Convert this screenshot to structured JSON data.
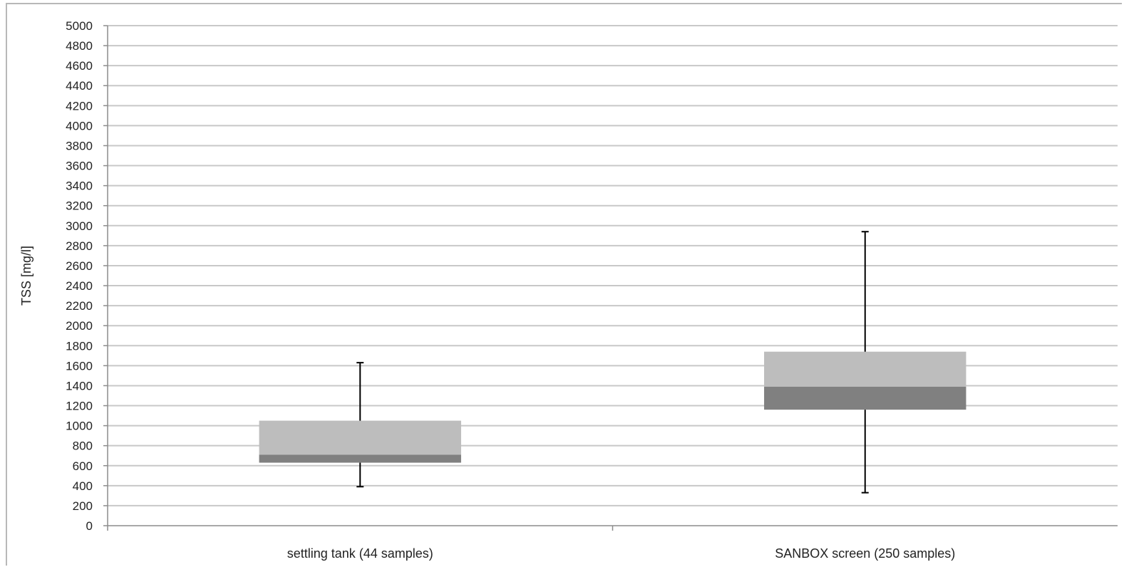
{
  "chart_data": {
    "type": "box",
    "ylabel": "TSS [mg/l]",
    "xlabel": "",
    "title": "",
    "ylim": [
      0,
      5000
    ],
    "y_ticks": [
      0,
      200,
      400,
      600,
      800,
      1000,
      1200,
      1400,
      1600,
      1800,
      2000,
      2200,
      2400,
      2600,
      2800,
      3000,
      3200,
      3400,
      3600,
      3800,
      4000,
      4200,
      4400,
      4600,
      4800,
      5000
    ],
    "grid": true,
    "legend": "none",
    "categories": [
      "settling tank (44 samples)",
      "SANBOX screen (250 samples)"
    ],
    "boxes": [
      {
        "category": "settling tank (44 samples)",
        "min": 390,
        "q1": 630,
        "median": 710,
        "q3": 1050,
        "max": 1630
      },
      {
        "category": "SANBOX screen (250 samples)",
        "min": 330,
        "q1": 1160,
        "median": 1390,
        "q3": 1740,
        "max": 2940
      }
    ],
    "colors": {
      "upper_box": "#bdbdbd",
      "lower_box": "#808080",
      "grid": "#c8c8c8",
      "whisker": "#000000"
    }
  }
}
